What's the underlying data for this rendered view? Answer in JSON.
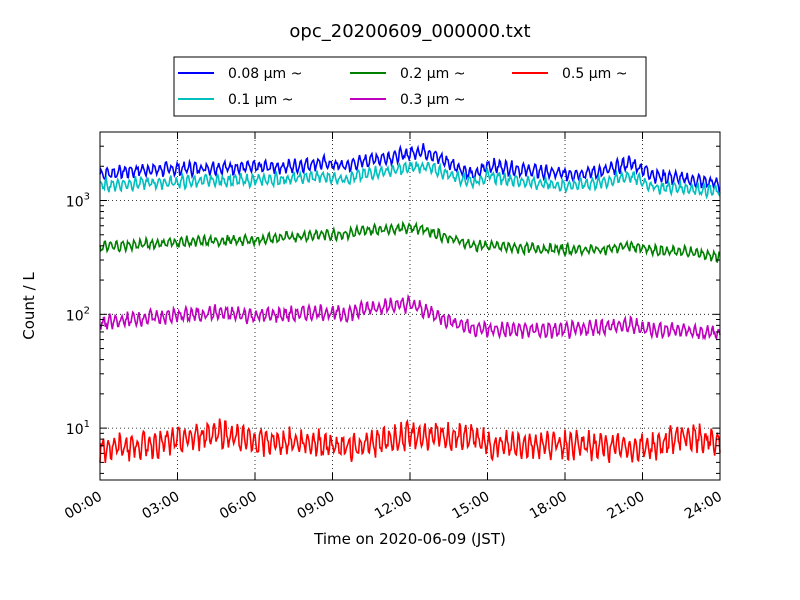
{
  "chart_data": {
    "type": "line",
    "title": "opc_20200609_000000.txt",
    "xlabel": "Time on 2020-06-09 (JST)",
    "ylabel": "Count / L",
    "yscale": "log",
    "ylim": [
      3.5,
      4000
    ],
    "xlim": [
      "00:00",
      "24:00"
    ],
    "x_ticks": [
      "00:00",
      "03:00",
      "06:00",
      "09:00",
      "12:00",
      "15:00",
      "18:00",
      "21:00",
      "24:00"
    ],
    "y_ticks": [
      {
        "value": 10,
        "base": "10",
        "exp": "1"
      },
      {
        "value": 100,
        "base": "10",
        "exp": "2"
      },
      {
        "value": 1000,
        "base": "10",
        "exp": "3"
      }
    ],
    "grid": true,
    "legend_position": "top-center",
    "x_hours": [
      0,
      1.5,
      3,
      4.5,
      6,
      7.5,
      8.5,
      9.5,
      10.5,
      11.5,
      12,
      12.5,
      13.5,
      14.5,
      15,
      16.5,
      18,
      19.5,
      20.5,
      21.5,
      22.5,
      24
    ],
    "series": [
      {
        "name": "0.08 μm ~",
        "color": "#0000ff",
        "values": [
          1700,
          1850,
          1900,
          1950,
          1950,
          2000,
          2150,
          2000,
          2300,
          2450,
          2600,
          2750,
          2150,
          1650,
          2050,
          1850,
          1700,
          1800,
          2150,
          1650,
          1550,
          1400
        ]
      },
      {
        "name": "0.1 μm ~",
        "color": "#00bfbf",
        "values": [
          1350,
          1420,
          1450,
          1500,
          1500,
          1560,
          1620,
          1550,
          1750,
          1850,
          1950,
          2000,
          1700,
          1450,
          1650,
          1450,
          1350,
          1450,
          1650,
          1300,
          1300,
          1200
        ]
      },
      {
        "name": "0.2 μm ~",
        "color": "#008000",
        "values": [
          390,
          410,
          430,
          440,
          450,
          480,
          500,
          510,
          550,
          570,
          580,
          560,
          470,
          400,
          400,
          380,
          370,
          370,
          400,
          360,
          360,
          320
        ]
      },
      {
        "name": "0.3 μm ~",
        "color": "#bf00bf",
        "values": [
          83,
          92,
          97,
          103,
          97,
          100,
          105,
          100,
          115,
          120,
          122,
          110,
          88,
          75,
          73,
          73,
          72,
          78,
          80,
          73,
          73,
          67
        ]
      },
      {
        "name": "0.5 μm ~",
        "color": "#ff0000",
        "values": [
          6.7,
          7.0,
          7.7,
          9.3,
          7.5,
          7.6,
          7.4,
          6.8,
          7.2,
          8.2,
          8.5,
          8.5,
          8.3,
          8.3,
          7.0,
          7.2,
          7.2,
          6.9,
          6.7,
          6.9,
          8.5,
          7.5
        ]
      }
    ]
  }
}
